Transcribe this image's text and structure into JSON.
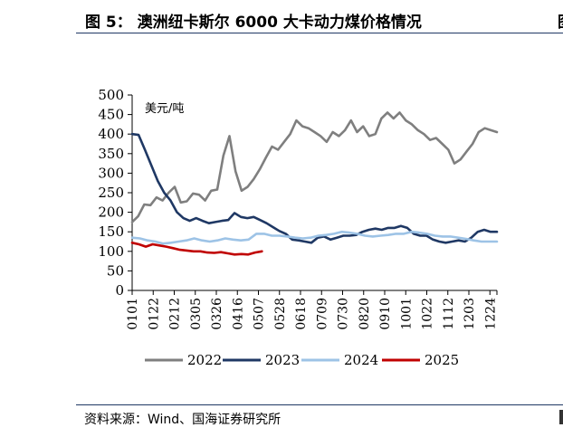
{
  "figure": {
    "title": "图 5：  澳洲纽卡斯尔 6000 大卡动力煤价格情况",
    "title_edge": "图",
    "source": "资料来源：Wind、国海证券研究所"
  },
  "chart_data": {
    "type": "line",
    "title": "澳洲纽卡斯尔 6000 大卡动力煤价格情况",
    "unit_label": "美元/吨",
    "ylabel": "美元/吨",
    "xlabel": "",
    "ylim": [
      0,
      500
    ],
    "yticks": [
      0,
      50,
      100,
      150,
      200,
      250,
      300,
      350,
      400,
      450,
      500
    ],
    "xtick_labels": [
      "0101",
      "0122",
      "0212",
      "0305",
      "0326",
      "0416",
      "0507",
      "0528",
      "0618",
      "0709",
      "0730",
      "0820",
      "0910",
      "1001",
      "1022",
      "1112",
      "1203",
      "1224"
    ],
    "x_start_week": 0,
    "x_end_week": 52,
    "weeks_per_tick": 3,
    "grid": false,
    "legend_position": "bottom",
    "series": [
      {
        "name": "2022",
        "color": "#7f7f7f",
        "values": [
          175,
          190,
          220,
          218,
          238,
          230,
          250,
          265,
          225,
          228,
          248,
          245,
          230,
          255,
          258,
          345,
          395,
          305,
          255,
          265,
          285,
          310,
          340,
          368,
          360,
          380,
          400,
          435,
          420,
          415,
          405,
          395,
          380,
          405,
          395,
          410,
          435,
          405,
          420,
          395,
          400,
          440,
          455,
          440,
          455,
          435,
          425,
          410,
          400,
          385,
          390,
          375,
          360,
          325,
          335,
          355,
          375,
          405,
          415,
          410,
          405
        ]
      },
      {
        "name": "2023",
        "color": "#1f3864",
        "values": [
          400,
          398,
          360,
          320,
          280,
          250,
          230,
          200,
          185,
          178,
          185,
          178,
          172,
          175,
          178,
          180,
          198,
          188,
          185,
          188,
          180,
          172,
          162,
          152,
          145,
          130,
          128,
          125,
          122,
          135,
          138,
          130,
          135,
          140,
          140,
          142,
          150,
          155,
          158,
          155,
          160,
          160,
          165,
          160,
          145,
          140,
          140,
          130,
          125,
          122,
          125,
          128,
          125,
          135,
          150,
          155,
          150,
          150
        ]
      },
      {
        "name": "2024",
        "color": "#9dc3e6",
        "values": [
          135,
          133,
          128,
          125,
          120,
          122,
          125,
          128,
          133,
          128,
          125,
          128,
          133,
          130,
          128,
          130,
          145,
          145,
          140,
          140,
          138,
          135,
          133,
          135,
          140,
          142,
          145,
          150,
          148,
          145,
          140,
          138,
          140,
          142,
          145,
          145,
          150,
          148,
          145,
          140,
          138,
          138,
          135,
          132,
          128,
          125,
          125,
          125
        ]
      },
      {
        "name": "2025",
        "color": "#c00000",
        "values": [
          122,
          118,
          112,
          118,
          115,
          112,
          108,
          104,
          102,
          100,
          100,
          97,
          96,
          98,
          95,
          92,
          93,
          92,
          97,
          100
        ]
      }
    ]
  }
}
